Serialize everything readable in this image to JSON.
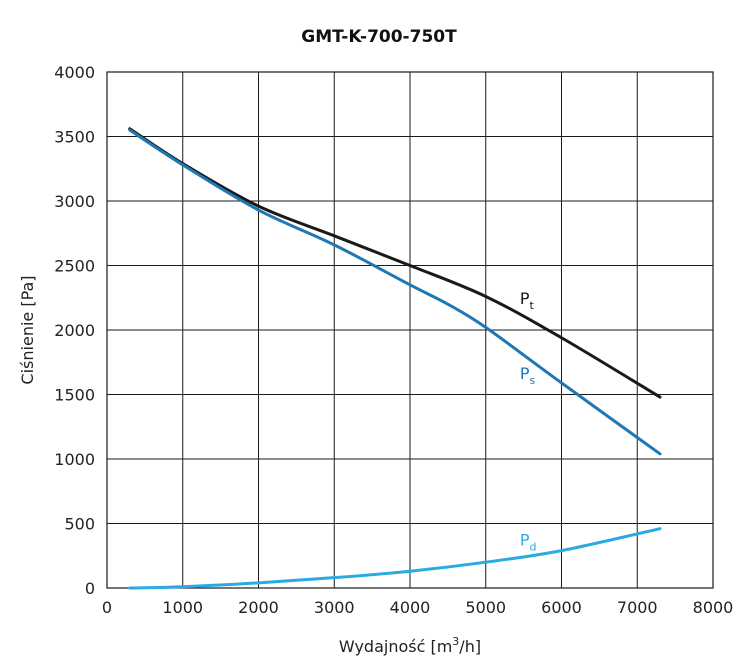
{
  "chart_data": {
    "type": "line",
    "title": "GMT-K-700-750T",
    "xlabel": {
      "main": "Wydajność [m",
      "sup": "3",
      "tail": "/h]"
    },
    "ylabel": "Ciśnienie [Pa]",
    "xlim": [
      0,
      8000
    ],
    "ylim": [
      0,
      4000
    ],
    "xticks": [
      0,
      1000,
      2000,
      3000,
      4000,
      5000,
      6000,
      7000,
      8000
    ],
    "yticks": [
      0,
      500,
      1000,
      1500,
      2000,
      2500,
      3000,
      3500,
      4000
    ],
    "grid": true,
    "series": [
      {
        "name": "Pt",
        "label_main": "P",
        "label_sub": "t",
        "color": "#1a1a1a",
        "label_at": [
          5450,
          2200
        ],
        "x": [
          300,
          1000,
          2000,
          3000,
          4000,
          5000,
          6000,
          7300
        ],
        "y": [
          3560,
          3290,
          2960,
          2730,
          2500,
          2260,
          1940,
          1480
        ]
      },
      {
        "name": "Ps",
        "label_main": "P",
        "label_sub": "s",
        "color": "#1f78b4",
        "label_at": [
          5450,
          1620
        ],
        "x": [
          300,
          1000,
          2000,
          3000,
          4000,
          4500,
          5000,
          6000,
          7300
        ],
        "y": [
          3550,
          3280,
          2930,
          2660,
          2350,
          2200,
          2020,
          1590,
          1040
        ]
      },
      {
        "name": "Pd",
        "label_main": "P",
        "label_sub": "d",
        "color": "#29abe2",
        "label_at": [
          5450,
          330
        ],
        "x": [
          300,
          1000,
          2000,
          3000,
          4000,
          5000,
          6000,
          7300
        ],
        "y": [
          0,
          10,
          40,
          80,
          130,
          200,
          290,
          460
        ]
      }
    ]
  }
}
